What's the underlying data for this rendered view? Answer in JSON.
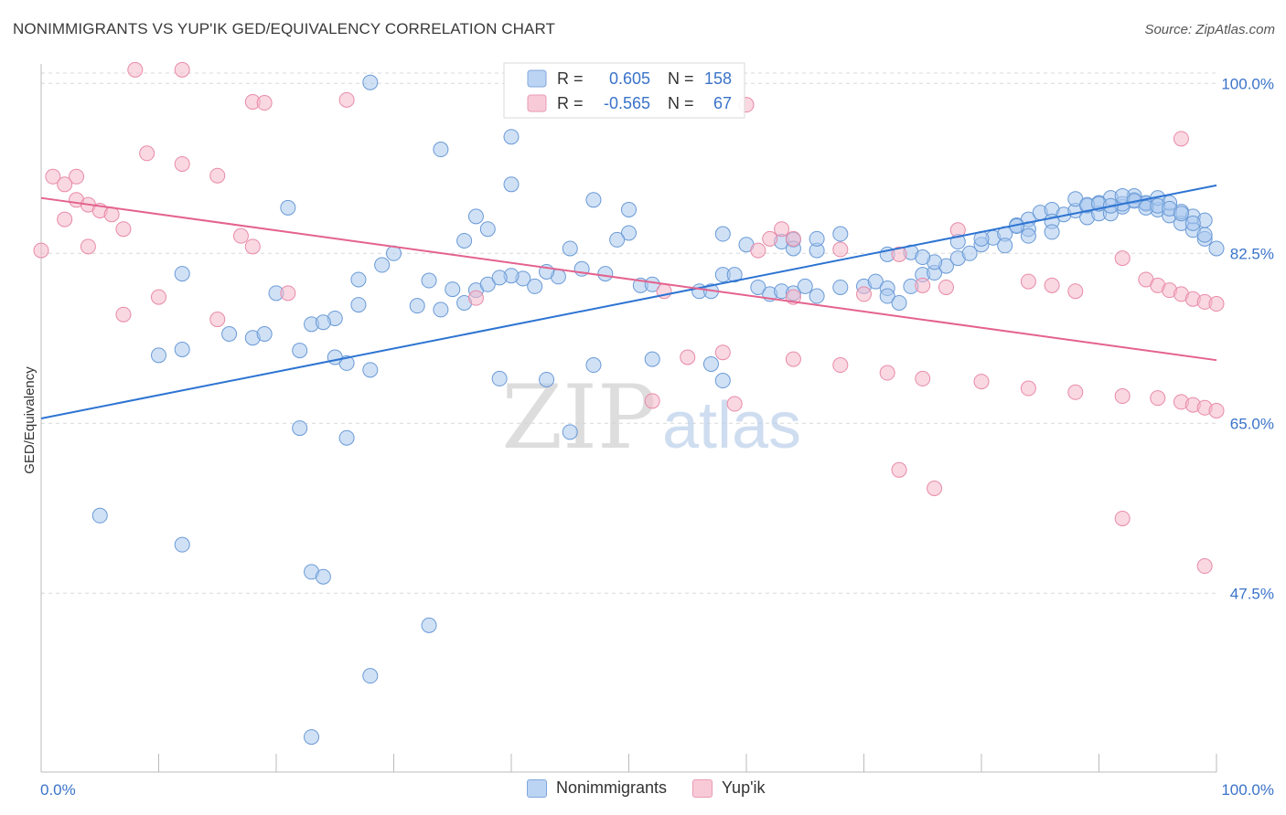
{
  "header": {
    "title": "NONIMMIGRANTS VS YUP'IK GED/EQUIVALENCY CORRELATION CHART",
    "source": "Source: ZipAtlas.com"
  },
  "watermark": {
    "zip": "ZIP",
    "atlas": "atlas"
  },
  "legend": {
    "rows": [
      {
        "r_label": "R =",
        "r_value": "0.605",
        "n_label": "N =",
        "n_value": "158",
        "color": "#a9c8ef"
      },
      {
        "r_label": "R =",
        "r_value": "-0.565",
        "n_label": "N =",
        "n_value": "67",
        "color": "#f4b8cb"
      }
    ]
  },
  "colors": {
    "blue_fill": "#a9c8ef",
    "blue_stroke": "#6a9ad6",
    "blue_line": "#2d74d2",
    "pink_fill": "#f4b8cb",
    "pink_stroke": "#e98aa8",
    "pink_line": "#e4628e",
    "tick": "#3a73c9",
    "grid": "#d8d8d8"
  },
  "chart_data": {
    "type": "scatter",
    "title": "NONIMMIGRANTS VS YUP'IK GED/EQUIVALENCY CORRELATION CHART",
    "xlabel": "",
    "ylabel": "GED/Equivalency",
    "xlim": [
      0,
      100
    ],
    "ylim": [
      30.5,
      102
    ],
    "x_tick_labels": [
      "0.0%",
      "100.0%"
    ],
    "y_ticks": [
      47.5,
      65.0,
      82.5,
      100.0
    ],
    "y_tick_labels": [
      "47.5%",
      "65.0%",
      "82.5%",
      "100.0%"
    ],
    "grid": true,
    "legend_position": "bottom-center",
    "series": [
      {
        "name": "Nonimmigrants",
        "color": "#a9c8ef",
        "trend": [
          [
            0,
            65.5
          ],
          [
            100,
            89.5
          ]
        ],
        "points": [
          [
            28,
            100.1
          ],
          [
            34,
            93.2
          ],
          [
            40,
            94.5
          ],
          [
            40,
            89.6
          ],
          [
            21,
            87.2
          ],
          [
            47,
            88.0
          ],
          [
            50,
            87.0
          ],
          [
            37,
            86.3
          ],
          [
            38,
            85.0
          ],
          [
            36,
            83.8
          ],
          [
            50,
            84.6
          ],
          [
            58,
            84.5
          ],
          [
            60,
            83.4
          ],
          [
            63,
            83.7
          ],
          [
            66,
            82.8
          ],
          [
            64,
            83.9
          ],
          [
            49,
            83.9
          ],
          [
            45,
            83.0
          ],
          [
            30,
            82.5
          ],
          [
            29,
            81.3
          ],
          [
            12,
            80.4
          ],
          [
            20,
            78.4
          ],
          [
            27,
            79.8
          ],
          [
            32,
            77.1
          ],
          [
            36,
            77.4
          ],
          [
            37,
            78.7
          ],
          [
            38,
            79.3
          ],
          [
            34,
            76.7
          ],
          [
            27,
            77.2
          ],
          [
            25,
            75.8
          ],
          [
            44,
            80.1
          ],
          [
            46,
            80.9
          ],
          [
            48,
            80.4
          ],
          [
            41,
            79.9
          ],
          [
            42,
            79.1
          ],
          [
            35,
            78.8
          ],
          [
            33,
            79.7
          ],
          [
            40,
            80.2
          ],
          [
            39,
            80.0
          ],
          [
            43,
            80.6
          ],
          [
            51,
            79.2
          ],
          [
            52,
            79.3
          ],
          [
            56,
            78.6
          ],
          [
            57,
            78.6
          ],
          [
            58,
            80.3
          ],
          [
            59,
            80.3
          ],
          [
            61,
            79.0
          ],
          [
            62,
            78.3
          ],
          [
            63,
            78.6
          ],
          [
            64,
            78.4
          ],
          [
            65,
            79.1
          ],
          [
            66,
            78.1
          ],
          [
            68,
            79.0
          ],
          [
            70,
            79.1
          ],
          [
            71,
            79.6
          ],
          [
            72,
            78.9
          ],
          [
            74,
            79.1
          ],
          [
            75,
            80.3
          ],
          [
            76,
            80.5
          ],
          [
            77,
            81.2
          ],
          [
            78,
            82.0
          ],
          [
            79,
            82.5
          ],
          [
            80,
            83.4
          ],
          [
            81,
            84.1
          ],
          [
            82,
            84.5
          ],
          [
            83,
            85.4
          ],
          [
            84,
            86.0
          ],
          [
            85,
            86.7
          ],
          [
            86,
            87.0
          ],
          [
            87,
            86.5
          ],
          [
            88,
            86.9
          ],
          [
            89,
            87.4
          ],
          [
            90,
            87.7
          ],
          [
            91,
            88.2
          ],
          [
            92,
            87.3
          ],
          [
            93,
            88.0
          ],
          [
            94,
            87.6
          ],
          [
            95,
            87.0
          ],
          [
            96,
            86.4
          ],
          [
            97,
            85.6
          ],
          [
            98,
            84.9
          ],
          [
            99,
            84.0
          ],
          [
            100,
            83.0
          ],
          [
            68,
            84.5
          ],
          [
            66,
            84.0
          ],
          [
            64,
            83.0
          ],
          [
            72,
            82.4
          ],
          [
            74,
            82.6
          ],
          [
            76,
            81.6
          ],
          [
            75,
            82.1
          ],
          [
            78,
            83.7
          ],
          [
            80,
            84.0
          ],
          [
            82,
            83.3
          ],
          [
            84,
            85.0
          ],
          [
            86,
            85.8
          ],
          [
            83,
            85.3
          ],
          [
            84,
            84.3
          ],
          [
            86,
            84.7
          ],
          [
            89,
            86.2
          ],
          [
            90,
            86.6
          ],
          [
            91,
            86.6
          ],
          [
            92,
            87.6
          ],
          [
            94,
            87.7
          ],
          [
            95,
            88.2
          ],
          [
            96,
            87.7
          ],
          [
            97,
            86.8
          ],
          [
            98,
            86.3
          ],
          [
            99,
            85.9
          ],
          [
            93,
            88.4
          ],
          [
            92,
            88.4
          ],
          [
            88,
            88.1
          ],
          [
            89,
            87.5
          ],
          [
            90,
            87.6
          ],
          [
            91,
            87.4
          ],
          [
            93,
            87.9
          ],
          [
            94,
            87.2
          ],
          [
            95,
            87.4
          ],
          [
            96,
            87.1
          ],
          [
            97,
            86.6
          ],
          [
            98,
            85.6
          ],
          [
            99,
            84.4
          ],
          [
            28,
            70.5
          ],
          [
            26,
            71.2
          ],
          [
            25,
            71.8
          ],
          [
            22,
            72.5
          ],
          [
            18,
            73.8
          ],
          [
            19,
            74.2
          ],
          [
            23,
            75.2
          ],
          [
            24,
            75.4
          ],
          [
            16,
            74.2
          ],
          [
            12,
            72.6
          ],
          [
            10,
            72.0
          ],
          [
            45,
            64.1
          ],
          [
            43,
            69.5
          ],
          [
            47,
            71.0
          ],
          [
            52,
            71.6
          ],
          [
            57,
            71.1
          ],
          [
            58,
            69.4
          ],
          [
            39,
            69.6
          ],
          [
            26,
            63.5
          ],
          [
            22,
            64.5
          ],
          [
            5,
            55.5
          ],
          [
            12,
            52.5
          ],
          [
            23,
            49.7
          ],
          [
            24,
            49.2
          ],
          [
            33,
            44.2
          ],
          [
            28,
            39.0
          ],
          [
            23,
            32.7
          ],
          [
            72,
            78.1
          ],
          [
            73,
            77.4
          ]
        ]
      },
      {
        "name": "Yup'ik",
        "color": "#f4b8cb",
        "trend": [
          [
            0,
            88.2
          ],
          [
            100,
            71.5
          ]
        ],
        "points": [
          [
            8,
            101.4
          ],
          [
            12,
            101.4
          ],
          [
            18,
            98.1
          ],
          [
            19,
            98.0
          ],
          [
            26,
            98.3
          ],
          [
            60,
            97.8
          ],
          [
            97,
            94.3
          ],
          [
            9,
            92.8
          ],
          [
            12,
            91.7
          ],
          [
            1,
            90.4
          ],
          [
            3,
            90.4
          ],
          [
            15,
            90.5
          ],
          [
            2,
            89.6
          ],
          [
            3,
            88.0
          ],
          [
            4,
            87.5
          ],
          [
            5,
            86.9
          ],
          [
            6,
            86.5
          ],
          [
            2,
            86.0
          ],
          [
            7,
            85.0
          ],
          [
            17,
            84.3
          ],
          [
            18,
            83.2
          ],
          [
            4,
            83.2
          ],
          [
            0,
            82.8
          ],
          [
            61,
            82.8
          ],
          [
            62,
            84.0
          ],
          [
            63,
            85.0
          ],
          [
            64,
            84.0
          ],
          [
            68,
            82.9
          ],
          [
            73,
            82.4
          ],
          [
            78,
            84.9
          ],
          [
            92,
            82.0
          ],
          [
            10,
            78.0
          ],
          [
            21,
            78.4
          ],
          [
            37,
            77.9
          ],
          [
            53,
            78.6
          ],
          [
            64,
            78.0
          ],
          [
            70,
            78.3
          ],
          [
            75,
            79.2
          ],
          [
            77,
            79.0
          ],
          [
            84,
            79.6
          ],
          [
            86,
            79.2
          ],
          [
            88,
            78.6
          ],
          [
            94,
            79.8
          ],
          [
            95,
            79.2
          ],
          [
            96,
            78.7
          ],
          [
            97,
            78.3
          ],
          [
            98,
            77.8
          ],
          [
            99,
            77.5
          ],
          [
            100,
            77.3
          ],
          [
            7,
            76.2
          ],
          [
            15,
            75.7
          ],
          [
            55,
            71.8
          ],
          [
            58,
            72.3
          ],
          [
            64,
            71.6
          ],
          [
            68,
            71.0
          ],
          [
            72,
            70.2
          ],
          [
            75,
            69.6
          ],
          [
            80,
            69.3
          ],
          [
            84,
            68.6
          ],
          [
            88,
            68.2
          ],
          [
            92,
            67.8
          ],
          [
            95,
            67.6
          ],
          [
            97,
            67.2
          ],
          [
            98,
            66.9
          ],
          [
            99,
            66.6
          ],
          [
            100,
            66.3
          ],
          [
            59,
            67.0
          ],
          [
            52,
            67.3
          ],
          [
            73,
            60.2
          ],
          [
            76,
            58.3
          ],
          [
            92,
            55.2
          ],
          [
            99,
            50.3
          ]
        ]
      }
    ]
  },
  "bottom_legend": {
    "items": [
      "Nonimmigrants",
      "Yup'ik"
    ]
  }
}
